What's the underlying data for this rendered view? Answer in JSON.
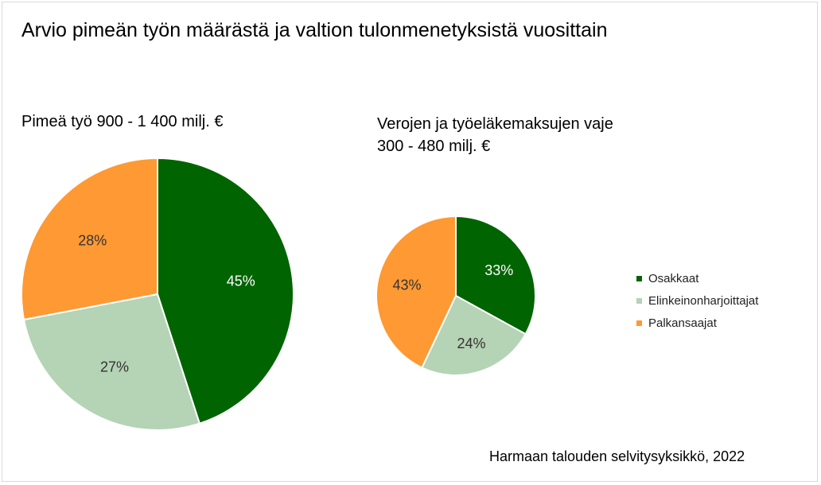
{
  "title": "Arvio pimeän työn määrästä ja valtion tulonmenetyksistä vuosittain",
  "source": "Harmaan talouden selvitysyksikkö, 2022",
  "colors": {
    "Osakkaat": "#006400",
    "Elinkeinonharjoittajat": "#b5d3b5",
    "Palkansaajat": "#ff9933"
  },
  "legend": [
    "Osakkaat",
    "Elinkeinonharjoittajat",
    "Palkansaajat"
  ],
  "chart_data": [
    {
      "type": "pie",
      "title": "Pimeä työ 900 - 1 400 milj. €",
      "title_lines": [
        "Pimeä työ 900 - 1 400 milj. €"
      ],
      "categories": [
        "Osakkaat",
        "Elinkeinonharjoittajat",
        "Palkansaajat"
      ],
      "values": [
        45,
        27,
        28
      ],
      "labels": [
        "45%",
        "27%",
        "28%"
      ],
      "label_colors": [
        "#ffffff",
        "#333333",
        "#333333"
      ]
    },
    {
      "type": "pie",
      "title": "Verojen ja työeläkemaksujen vaje 300 - 480 milj. €",
      "title_lines": [
        "Verojen ja työeläkemaksujen vaje",
        "300 - 480 milj. €"
      ],
      "categories": [
        "Osakkaat",
        "Elinkeinonharjoittajat",
        "Palkansaajat"
      ],
      "values": [
        33,
        24,
        43
      ],
      "labels": [
        "33%",
        "24%",
        "43%"
      ],
      "label_colors": [
        "#ffffff",
        "#333333",
        "#333333"
      ]
    }
  ]
}
